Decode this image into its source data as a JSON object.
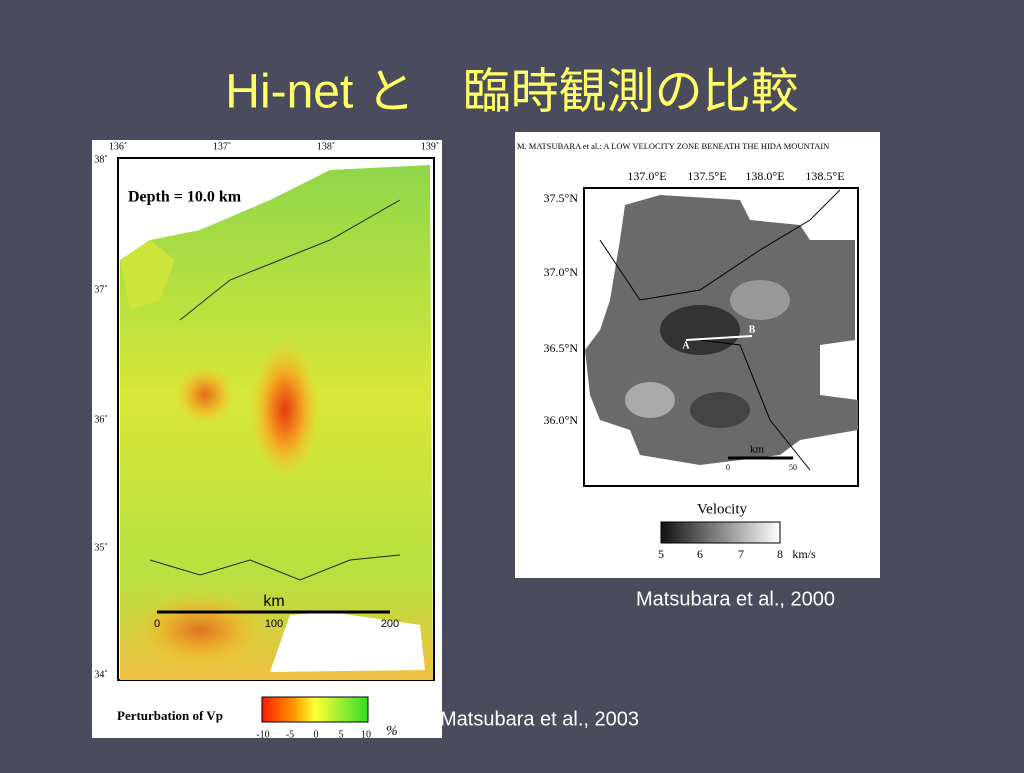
{
  "title": "Hi-net と　臨時観測の比較",
  "left_figure": {
    "lon_labels": [
      "136˚",
      "137˚",
      "138˚",
      "139˚"
    ],
    "lat_labels": [
      "38˚",
      "37˚",
      "36˚",
      "35˚",
      "34˚"
    ],
    "depth_label": "Depth = 10.0 km",
    "scale": {
      "unit": "km",
      "ticks": [
        "0",
        "100",
        "200"
      ]
    },
    "colorbar": {
      "label": "Perturbation of Vp",
      "ticks": [
        "-10",
        "-5",
        "0",
        "5",
        "10"
      ],
      "unit": "%"
    },
    "caption": "Matsubara et al., 2003"
  },
  "right_figure": {
    "header": "M. MATSUBARA et al.: A LOW VELOCITY ZONE BENEATH THE HIDA MOUNTAIN",
    "lon_labels": [
      "137.0°E",
      "137.5°E",
      "138.0°E",
      "138.5°E"
    ],
    "lat_labels": [
      "37.5°N",
      "37.0°N",
      "36.5°N",
      "36.0°N"
    ],
    "points": [
      "A",
      "B"
    ],
    "scale": {
      "unit": "km",
      "ticks": [
        "0",
        "50"
      ]
    },
    "colorbar": {
      "label": "Velocity",
      "ticks": [
        "5",
        "6",
        "7",
        "8"
      ],
      "unit": "km/s"
    },
    "caption": "Matsubara et al., 2000"
  }
}
